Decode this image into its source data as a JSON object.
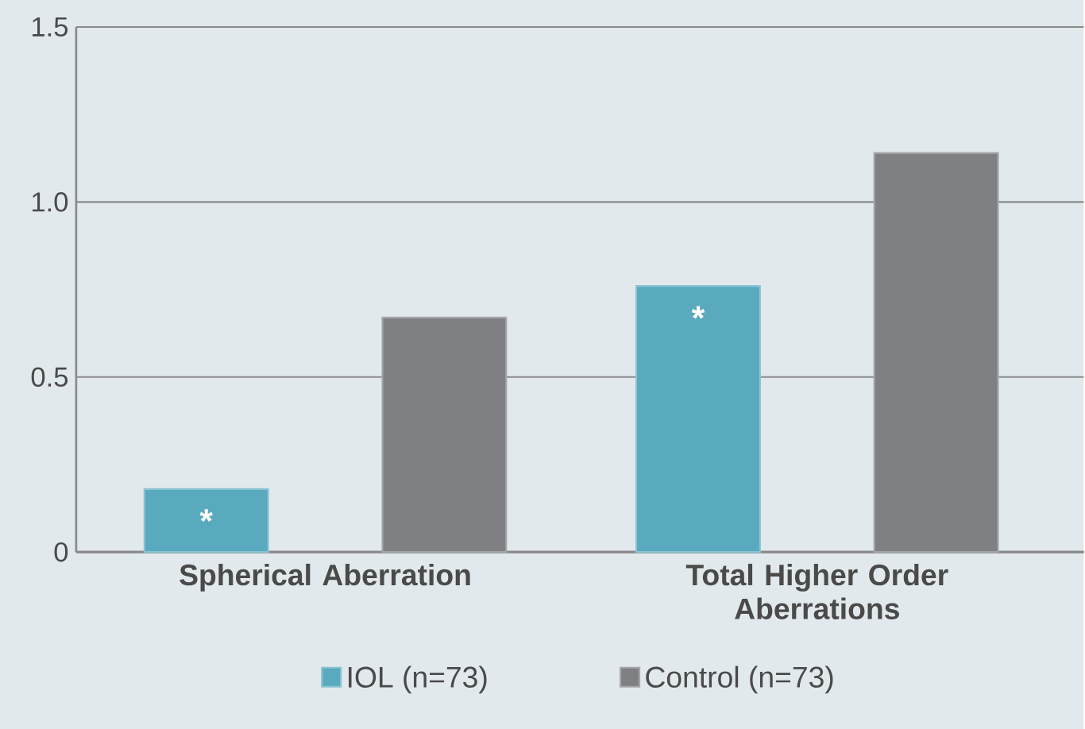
{
  "chart_data": {
    "type": "bar",
    "categories": [
      "Spherical Aberration",
      "Total Higher Order Aberrations"
    ],
    "series": [
      {
        "name": "IOL (n=73)",
        "color": "#5aaabf",
        "values": [
          0.18,
          0.76
        ]
      },
      {
        "name": "Control (n=73)",
        "color": "#7f8083",
        "values": [
          0.67,
          1.14
        ]
      }
    ],
    "ylim": [
      0,
      1.5
    ],
    "yticks": [
      0,
      {
        "value": 0.5,
        "label": "0.5"
      },
      {
        "value": 1,
        "label": "1.0"
      },
      1.5
    ],
    "grid": "y",
    "legend": "bottom",
    "annotations": [
      "*",
      "*"
    ]
  }
}
